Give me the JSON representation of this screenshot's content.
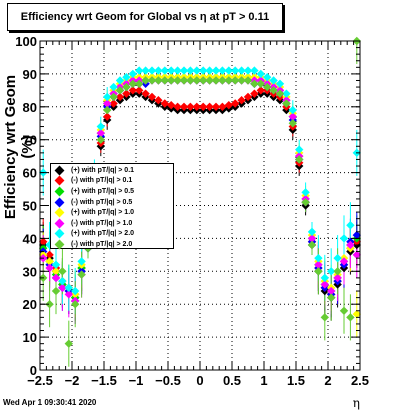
{
  "title": "Efficiency wrt Geom for Global vs   η at pT > 0.11",
  "timestamp": "Wed Apr  1 09:30:41 2020",
  "chart_data": {
    "type": "scatter",
    "title": "Efficiency wrt Geom for Global vs   η at pT > 0.11",
    "xlabel": "η",
    "ylabel": "Efficiency wrt Geom (%)",
    "xlim": [
      -2.5,
      2.5
    ],
    "ylim": [
      0,
      100
    ],
    "x_ticks": [
      "−2.5",
      "−2",
      "−1.5",
      "−1",
      "−0.5",
      "0",
      "0.5",
      "1",
      "1.5",
      "2",
      "2.5"
    ],
    "y_ticks": [
      "0",
      "10",
      "20",
      "30",
      "40",
      "50",
      "60",
      "70",
      "80",
      "90",
      "100"
    ],
    "grid": true,
    "legend_position": "middle-left",
    "x": [
      -2.45,
      -2.35,
      -2.25,
      -2.15,
      -2.05,
      -1.95,
      -1.85,
      -1.75,
      -1.65,
      -1.55,
      -1.45,
      -1.35,
      -1.25,
      -1.15,
      -1.05,
      -0.95,
      -0.85,
      -0.75,
      -0.65,
      -0.55,
      -0.45,
      -0.35,
      -0.25,
      -0.15,
      -0.05,
      0.05,
      0.15,
      0.25,
      0.35,
      0.45,
      0.55,
      0.65,
      0.75,
      0.85,
      0.95,
      1.05,
      1.15,
      1.25,
      1.35,
      1.45,
      1.55,
      1.65,
      1.75,
      1.85,
      1.95,
      2.05,
      2.15,
      2.25,
      2.35,
      2.45
    ],
    "series": [
      {
        "name": "(+) with pT/|q| > 0.1",
        "color": "#000000",
        "values": [
          38,
          34,
          30,
          26,
          24,
          22,
          30,
          37,
          55,
          68,
          76,
          80,
          82,
          83,
          84,
          84,
          83,
          82,
          81,
          80,
          79.5,
          79,
          79,
          79,
          79,
          79,
          79,
          79,
          79,
          79.5,
          80,
          81,
          82,
          83,
          84,
          84,
          83,
          82,
          79,
          73,
          62,
          50,
          38,
          30,
          24,
          22,
          26,
          31,
          36,
          38
        ]
      },
      {
        "name": "(-) with pT/|q| > 0.1",
        "color": "#ff0000",
        "values": [
          39,
          35,
          31,
          27,
          25,
          23,
          31,
          38,
          56,
          69,
          77,
          81,
          83,
          84,
          85,
          85,
          84,
          83,
          82,
          81,
          80.5,
          80,
          80,
          80,
          80,
          80,
          80,
          80,
          80,
          80.5,
          81,
          82,
          83,
          84,
          85,
          85,
          84,
          83,
          80,
          74,
          63,
          51,
          39,
          31,
          25,
          23,
          27,
          32,
          37,
          39
        ]
      },
      {
        "name": "(+) with pT/|q| > 0.5",
        "color": "#00dd00",
        "values": [
          37,
          33,
          29,
          26,
          25,
          22,
          31,
          38,
          58,
          72,
          81,
          84,
          86,
          87,
          88,
          88,
          88,
          89,
          89,
          89,
          89,
          89,
          89,
          89,
          89,
          89,
          89,
          89,
          89,
          89,
          89,
          89,
          89,
          88,
          88,
          87,
          86,
          85,
          82,
          77,
          65,
          52,
          40,
          32,
          26,
          24,
          28,
          33,
          38,
          40
        ]
      },
      {
        "name": "(-) with pT/|q| > 0.5",
        "color": "#0000ff",
        "values": [
          36,
          32,
          28,
          25,
          24,
          21,
          30,
          37,
          57,
          71,
          80,
          83,
          85,
          86,
          87,
          87,
          87,
          88,
          88,
          88,
          88,
          88,
          88,
          88,
          88,
          88,
          88,
          88,
          88,
          88,
          88,
          88,
          88,
          87,
          87,
          86,
          85,
          84,
          81,
          76,
          64,
          51,
          39,
          31,
          25,
          23,
          27,
          32,
          39,
          41
        ]
      },
      {
        "name": "(+) with pT/|q| > 1.0",
        "color": "#ffff00",
        "values": [
          35,
          33,
          30,
          27,
          25,
          23,
          32,
          40,
          60,
          73,
          82,
          85,
          87,
          88,
          89,
          89,
          89,
          89,
          89,
          89,
          89,
          89,
          89,
          89,
          89,
          89,
          89,
          89,
          89,
          89,
          89,
          89,
          89,
          89,
          89,
          88,
          87,
          86,
          83,
          78,
          66,
          53,
          41,
          33,
          27,
          25,
          29,
          34,
          37,
          17
        ]
      },
      {
        "name": "(-) with pT/|q| > 1.0",
        "color": "#ff00ff",
        "values": [
          34,
          31,
          28,
          25,
          23,
          21,
          29,
          38,
          58,
          72,
          81,
          84,
          86,
          87,
          88,
          88,
          88,
          88,
          88,
          88,
          88,
          88,
          88,
          88,
          88,
          88,
          88,
          88,
          88,
          88,
          88,
          88,
          88,
          88,
          88,
          87,
          86,
          85,
          82,
          77,
          65,
          52,
          40,
          32,
          26,
          24,
          28,
          33,
          38,
          35
        ]
      },
      {
        "name": "(+) with pT/|q| > 2.0",
        "color": "#00ffff",
        "values": [
          60,
          38,
          32,
          27,
          25,
          24,
          33,
          41,
          61,
          74,
          83,
          86,
          88,
          89,
          90,
          91,
          91,
          91,
          91,
          91,
          91,
          91,
          91,
          91,
          91,
          91,
          91,
          91,
          91,
          91,
          91,
          91,
          91,
          91,
          90,
          89,
          88,
          87,
          84,
          79,
          67,
          54,
          42,
          34,
          28,
          30,
          34,
          40,
          44,
          66
        ]
      },
      {
        "name": "(-) with pT/|q| > 2.0",
        "color": "#66cc33",
        "values": [
          28,
          20,
          24,
          30,
          8,
          20,
          29,
          37,
          56,
          70,
          79,
          83,
          85,
          86,
          87,
          87,
          88,
          88,
          88,
          88,
          88,
          88,
          88,
          88,
          88,
          88,
          88,
          88,
          88,
          88,
          88,
          88,
          88,
          87,
          87,
          86,
          85,
          84,
          81,
          75,
          64,
          51,
          38,
          30,
          16,
          22,
          30,
          18,
          16,
          100
        ]
      }
    ]
  }
}
